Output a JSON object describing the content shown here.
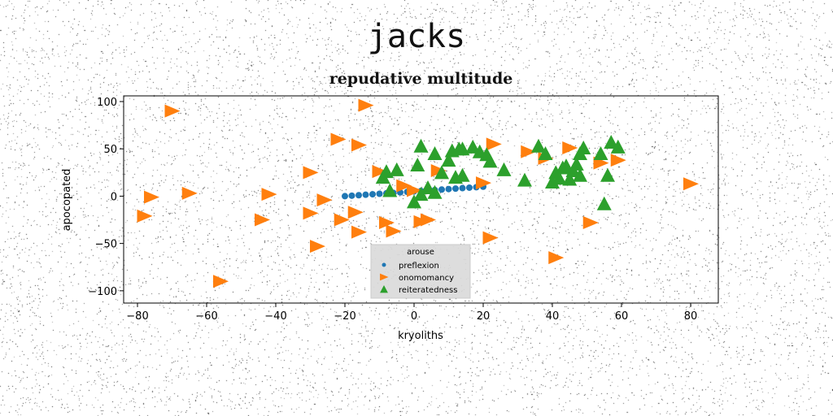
{
  "figure": {
    "suptitle": "jacks"
  },
  "chart_data": {
    "type": "scatter",
    "title": "repudative multitude",
    "xlabel": "kryoliths",
    "ylabel": "apocopated",
    "xlim": [
      -84,
      88
    ],
    "ylim": [
      -113,
      106
    ],
    "xticks": [
      -80,
      -60,
      -40,
      -20,
      0,
      20,
      40,
      60,
      80
    ],
    "yticks": [
      -100,
      -50,
      0,
      50,
      100
    ],
    "grid": false,
    "legend": {
      "title": "arouse",
      "position": "lower center"
    },
    "series": [
      {
        "name": "preflexion",
        "marker": "circle",
        "color": "#1f77b4",
        "x": [
          -20,
          -18,
          -16,
          -14,
          -12,
          -10,
          -8,
          -6,
          -4,
          -2,
          0,
          2,
          4,
          6,
          8,
          10,
          12,
          14,
          16,
          18,
          20
        ],
        "y": [
          0,
          0.5,
          1,
          1.5,
          2,
          2.5,
          3,
          3.5,
          4,
          4.5,
          5,
          5.5,
          6,
          6.5,
          7,
          7.5,
          8,
          8.5,
          9,
          9.5,
          10
        ]
      },
      {
        "name": "onomomancy",
        "marker": "triangle-right",
        "color": "#ff7f0e",
        "x": [
          -70,
          -14,
          -22,
          -16,
          -10,
          -30,
          -42,
          -65,
          -76,
          -78,
          -26,
          -17,
          -21,
          -30,
          -44,
          -16,
          -8,
          7,
          23,
          20,
          -3,
          0,
          2,
          -6,
          4,
          22,
          -56,
          -28,
          51,
          41,
          33,
          38,
          54,
          59,
          80,
          45
        ],
        "y": [
          90,
          96,
          60,
          54,
          26,
          25,
          2,
          3,
          -1,
          -21,
          -4,
          -17,
          -25,
          -18,
          -25,
          -38,
          -28,
          27,
          55,
          14,
          11,
          6,
          -27,
          -37,
          -25,
          -44,
          -90,
          -53,
          -28,
          -65,
          47,
          40,
          35,
          38,
          13,
          51
        ]
      },
      {
        "name": "reiteratedness",
        "marker": "triangle-up",
        "color": "#2ca02c",
        "x": [
          -8,
          -5,
          1,
          2,
          6,
          11,
          13,
          14,
          17,
          19,
          21,
          22,
          26,
          32,
          36,
          38,
          41,
          42,
          43,
          44,
          45,
          46,
          47,
          48,
          49,
          54,
          56,
          57,
          59,
          -7,
          -9,
          0,
          2,
          4,
          6,
          12,
          14,
          8,
          10,
          40,
          48,
          55
        ],
        "y": [
          26,
          28,
          33,
          53,
          45,
          48,
          50,
          50,
          52,
          47,
          44,
          37,
          28,
          17,
          53,
          45,
          25,
          19,
          30,
          32,
          18,
          27,
          34,
          45,
          51,
          45,
          22,
          57,
          52,
          6,
          20,
          -6,
          2,
          9,
          4,
          20,
          22,
          25,
          38,
          15,
          22,
          -8
        ]
      }
    ]
  }
}
